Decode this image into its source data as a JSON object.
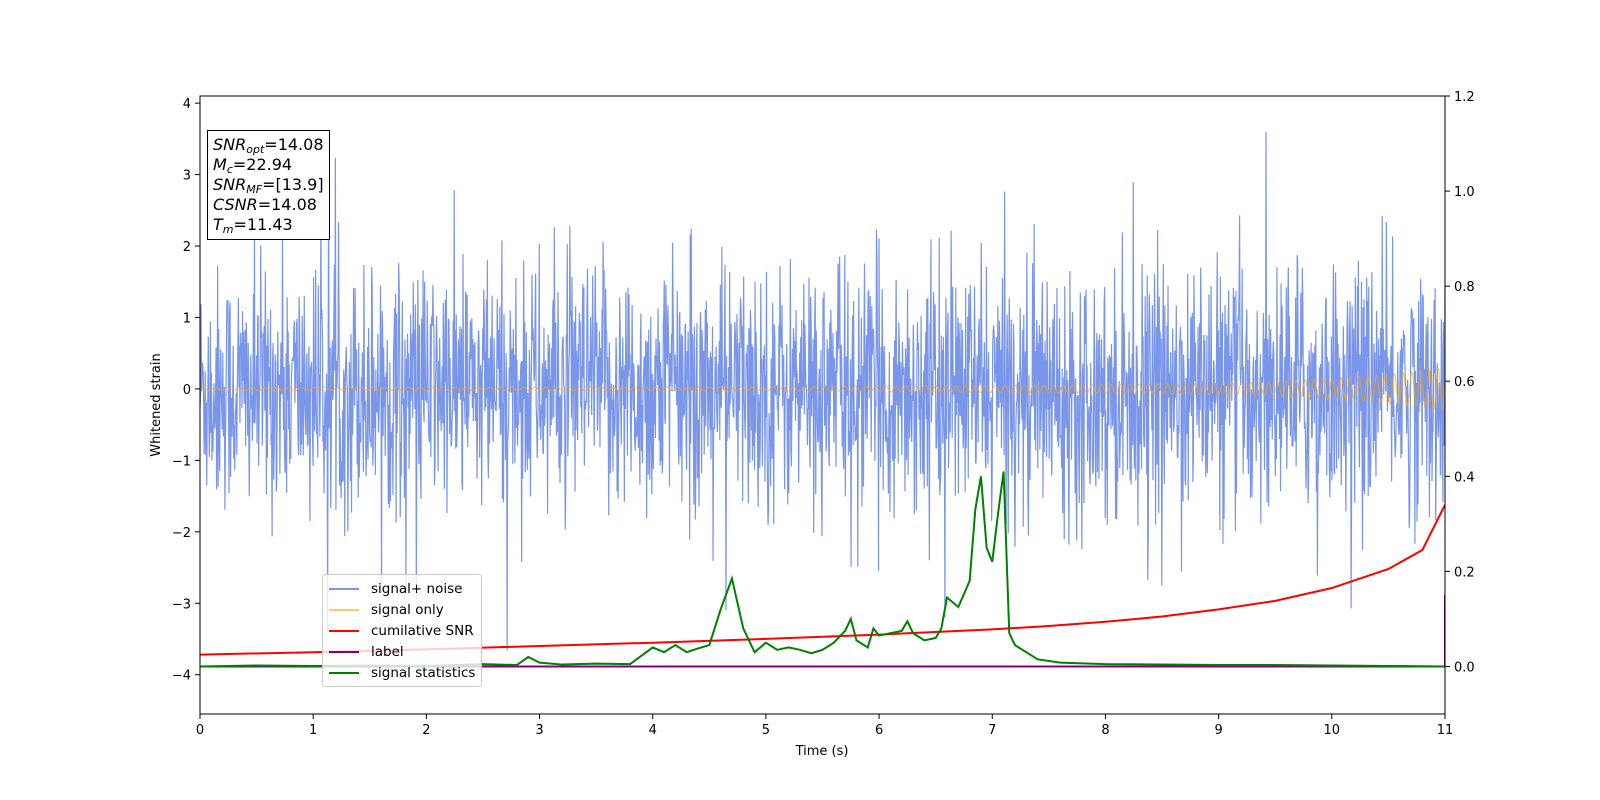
{
  "chart_data": {
    "type": "line",
    "xlabel": "Time (s)",
    "ylabel": "Whitened strain",
    "xlim": [
      0,
      11
    ],
    "ylim": [
      -4.55,
      4.1
    ],
    "y2lim": [
      -0.1,
      1.2
    ],
    "x_ticks": [
      "0",
      "1",
      "2",
      "3",
      "4",
      "5",
      "6",
      "7",
      "8",
      "9",
      "10",
      "11"
    ],
    "y_ticks": [
      "4",
      "3",
      "2",
      "1",
      "0",
      "−1",
      "−2",
      "−3",
      "−4"
    ],
    "y2_ticks": [
      "1.2",
      "1.0",
      "0.8",
      "0.6",
      "0.4",
      "0.2",
      "0.0"
    ],
    "legend_position": "lower-left",
    "grid": false,
    "series": [
      {
        "name": "signal+ noise",
        "color": "#4169E1",
        "axis": "left",
        "description_values": {
          "band": [
            -2.0,
            2.2
          ],
          "max_spike": 3.6,
          "min_spike": -4.05
        }
      },
      {
        "name": "signal only",
        "color": "#FFA500",
        "axis": "left",
        "envelope": {
          "x": [
            0,
            5,
            8,
            9.5,
            10.5,
            11
          ],
          "amplitude": [
            0.02,
            0.03,
            0.06,
            0.1,
            0.2,
            0.3
          ]
        }
      },
      {
        "name": "cumilative SNR",
        "color": "#FF0000",
        "axis": "right",
        "x": [
          0,
          1,
          2,
          3,
          4,
          5,
          6,
          7,
          7.5,
          8,
          8.5,
          9,
          9.5,
          10,
          10.5,
          10.8,
          11
        ],
        "y": [
          0.025,
          0.03,
          0.036,
          0.043,
          0.05,
          0.058,
          0.067,
          0.078,
          0.085,
          0.094,
          0.105,
          0.12,
          0.138,
          0.165,
          0.205,
          0.245,
          0.34
        ]
      },
      {
        "name": "label",
        "color": "#800080",
        "axis": "right",
        "x": [
          0,
          10.98,
          11.0,
          11.0
        ],
        "y": [
          0.0,
          0.0,
          0.0,
          0.15
        ]
      },
      {
        "name": "signal statistics",
        "color": "#008000",
        "axis": "right",
        "x": [
          0,
          0.5,
          1.0,
          1.5,
          2.0,
          2.5,
          2.8,
          2.9,
          3.0,
          3.2,
          3.5,
          3.8,
          4.0,
          4.1,
          4.2,
          4.3,
          4.4,
          4.5,
          4.6,
          4.7,
          4.8,
          4.9,
          5.0,
          5.1,
          5.2,
          5.3,
          5.4,
          5.5,
          5.6,
          5.7,
          5.75,
          5.8,
          5.9,
          5.95,
          6.0,
          6.1,
          6.2,
          6.25,
          6.3,
          6.4,
          6.5,
          6.55,
          6.6,
          6.7,
          6.8,
          6.85,
          6.9,
          6.95,
          7.0,
          7.05,
          7.1,
          7.15,
          7.2,
          7.3,
          7.4,
          7.6,
          8.0,
          8.5,
          9.0,
          9.5,
          10.0,
          10.5,
          11.0
        ],
        "y": [
          0.0,
          0.002,
          0.001,
          0.002,
          0.001,
          0.005,
          0.003,
          0.02,
          0.008,
          0.004,
          0.006,
          0.005,
          0.04,
          0.03,
          0.045,
          0.03,
          0.038,
          0.045,
          0.12,
          0.185,
          0.08,
          0.03,
          0.05,
          0.035,
          0.04,
          0.035,
          0.028,
          0.035,
          0.05,
          0.075,
          0.1,
          0.055,
          0.04,
          0.08,
          0.065,
          0.07,
          0.075,
          0.095,
          0.07,
          0.055,
          0.06,
          0.08,
          0.145,
          0.125,
          0.18,
          0.33,
          0.4,
          0.25,
          0.22,
          0.32,
          0.41,
          0.07,
          0.045,
          0.03,
          0.015,
          0.008,
          0.005,
          0.004,
          0.003,
          0.003,
          0.002,
          0.001,
          0.0
        ]
      }
    ]
  },
  "infobox": {
    "snr_opt_label": "SNR",
    "snr_opt_sub": "opt",
    "snr_opt_value": "=14.08",
    "mc_label": "M",
    "mc_sub": "c",
    "mc_value": "=22.94",
    "snr_mf_label": "SNR",
    "snr_mf_sub": "MF",
    "snr_mf_value": "=[13.9]",
    "csnr_label": "CSNR",
    "csnr_value": "=14.08",
    "tm_label": "T",
    "tm_sub": "m",
    "tm_value": "=11.43"
  },
  "legend": {
    "items": [
      {
        "label": "signal+ noise",
        "color": "#4169E1"
      },
      {
        "label": "signal only",
        "color": "#FFA500"
      },
      {
        "label": "cumilative SNR",
        "color": "#FF0000"
      },
      {
        "label": "label",
        "color": "#800080"
      },
      {
        "label": "signal statistics",
        "color": "#008000"
      }
    ]
  }
}
